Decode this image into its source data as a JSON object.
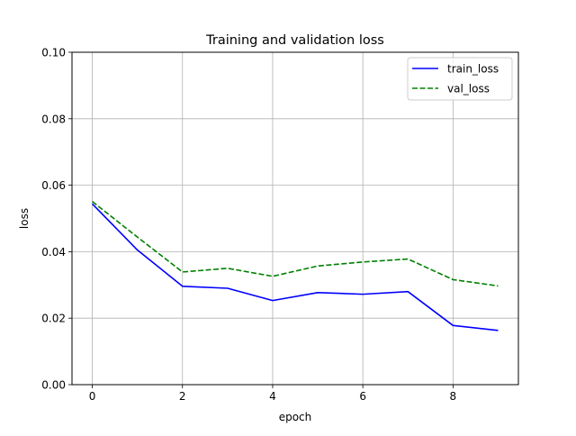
{
  "chart_data": {
    "type": "line",
    "title": "Training and validation loss",
    "xlabel": "epoch",
    "ylabel": "loss",
    "x": [
      0,
      1,
      2,
      3,
      4,
      5,
      6,
      7,
      8,
      9
    ],
    "series": [
      {
        "name": "train_loss",
        "color": "#0000ff",
        "style": "solid",
        "values": [
          0.0544,
          0.0405,
          0.0296,
          0.029,
          0.0253,
          0.0277,
          0.0272,
          0.028,
          0.0178,
          0.0163
        ]
      },
      {
        "name": "val_loss",
        "color": "#008000",
        "style": "dashed",
        "values": [
          0.0551,
          0.0444,
          0.0339,
          0.035,
          0.0326,
          0.0357,
          0.0369,
          0.0378,
          0.0316,
          0.0297
        ]
      }
    ],
    "xlim": [
      -0.45,
      9.45
    ],
    "ylim": [
      0.0,
      0.1
    ],
    "xticks": [
      0,
      2,
      4,
      6,
      8
    ],
    "xtick_labels": [
      "0",
      "2",
      "4",
      "6",
      "8"
    ],
    "yticks": [
      0.0,
      0.02,
      0.04,
      0.06,
      0.08,
      0.1
    ],
    "ytick_labels": [
      "0.00",
      "0.02",
      "0.04",
      "0.06",
      "0.08",
      "0.10"
    ],
    "grid": true,
    "legend_position": "top-right"
  }
}
